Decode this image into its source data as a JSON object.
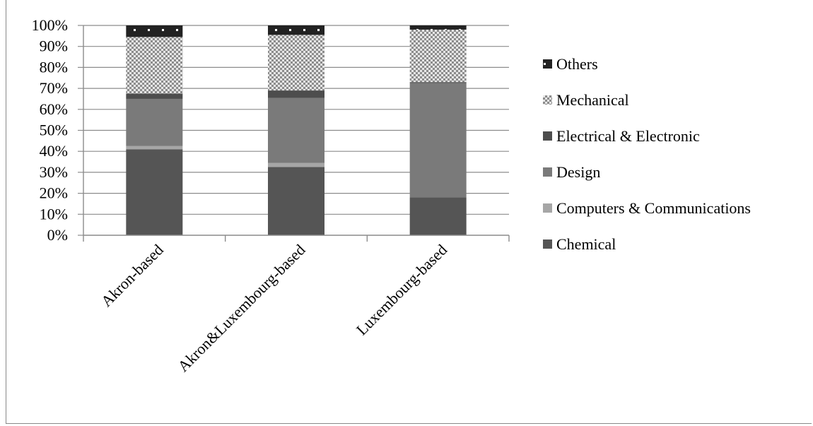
{
  "chart_data": {
    "type": "bar",
    "stacked": true,
    "categories": [
      "Akron-based",
      "Akron&Luxembourg-based",
      "Luxembourg-based"
    ],
    "series": [
      {
        "name": "Chemical",
        "values": [
          41,
          32.5,
          18
        ],
        "color": "#555555",
        "pattern": "solid"
      },
      {
        "name": "Computers & Communications",
        "values": [
          1.5,
          2,
          0
        ],
        "color": "#a6a6a6",
        "pattern": "solid"
      },
      {
        "name": "Design",
        "values": [
          22.5,
          31,
          54.5
        ],
        "color": "#7a7a7a",
        "pattern": "solid"
      },
      {
        "name": "Electrical & Electronic",
        "values": [
          2.5,
          3.5,
          0.5
        ],
        "color": "#4d4d4d",
        "pattern": "solid"
      },
      {
        "name": "Mechanical",
        "values": [
          27,
          26.5,
          25
        ],
        "color": "#bfbfbf",
        "pattern": "checker"
      },
      {
        "name": "Others",
        "values": [
          5.5,
          4.5,
          2
        ],
        "color": "#222222",
        "pattern": "dots"
      }
    ],
    "yticks": [
      "0%",
      "10%",
      "20%",
      "30%",
      "40%",
      "50%",
      "60%",
      "70%",
      "80%",
      "90%",
      "100%"
    ],
    "ylim": [
      0,
      100
    ],
    "legend_order": [
      "Others",
      "Mechanical",
      "Electrical & Electronic",
      "Design",
      "Computers & Communications",
      "Chemical"
    ],
    "legend_position": "right",
    "grid": true
  }
}
